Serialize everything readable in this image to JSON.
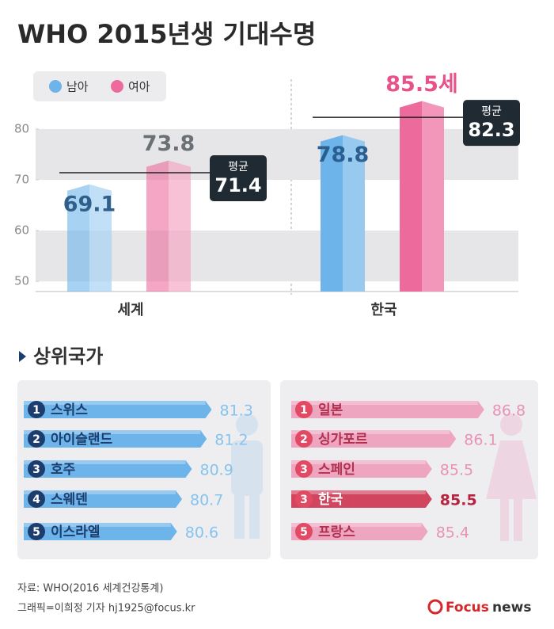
{
  "title": "WHO 2015년생 기대수명",
  "chart_data": [
    {
      "type": "bar",
      "categories": [
        "세계",
        "한국"
      ],
      "series": [
        {
          "name": "남아",
          "color": "#6cb4ea",
          "label_color": "#2f5f8a",
          "values": [
            69.1,
            78.8
          ]
        },
        {
          "name": "여아",
          "color": "#ec6a9c",
          "label_color": "#6b7075",
          "values": [
            73.8,
            85.5
          ],
          "value_labels": [
            "73.8",
            "85.5세"
          ]
        }
      ],
      "average_label": "평균",
      "averages": [
        71.4,
        82.3
      ],
      "ylim": [
        48,
        92
      ],
      "yticks": [
        50,
        60,
        70,
        80
      ],
      "bands": true
    },
    {
      "type": "hbar",
      "color": "#6cb4ea",
      "rank_color": "#1d3d6e",
      "value_color": "#86c3ee",
      "ranks": [
        "1",
        "2",
        "3",
        "4",
        "5"
      ],
      "categories": [
        "스위스",
        "아이슬랜드",
        "호주",
        "스웨덴",
        "이스라엘"
      ],
      "values": [
        81.3,
        81.2,
        80.9,
        80.7,
        80.6
      ],
      "xlim": [
        77.5,
        81.5
      ]
    },
    {
      "type": "hbar",
      "color": "#eea5c0",
      "rank_color": "#e24a64",
      "value_color": "#e992b4",
      "highlight": 3,
      "highlight_color": "#d2455f",
      "ranks": [
        "1",
        "2",
        "3",
        "3",
        "5"
      ],
      "categories": [
        "일본",
        "싱가포르",
        "스페인",
        "한국",
        "프랑스"
      ],
      "values": [
        86.8,
        86.1,
        85.5,
        85.5,
        85.4
      ],
      "xlim": [
        82,
        87
      ]
    }
  ],
  "section_title": "상위국가",
  "source": "자료: WHO(2016 세계건강통계)",
  "credit": "그래픽=이희정 기자 hj1925@focus.kr",
  "logo": {
    "brand": "Focus",
    "suffix": "news"
  }
}
